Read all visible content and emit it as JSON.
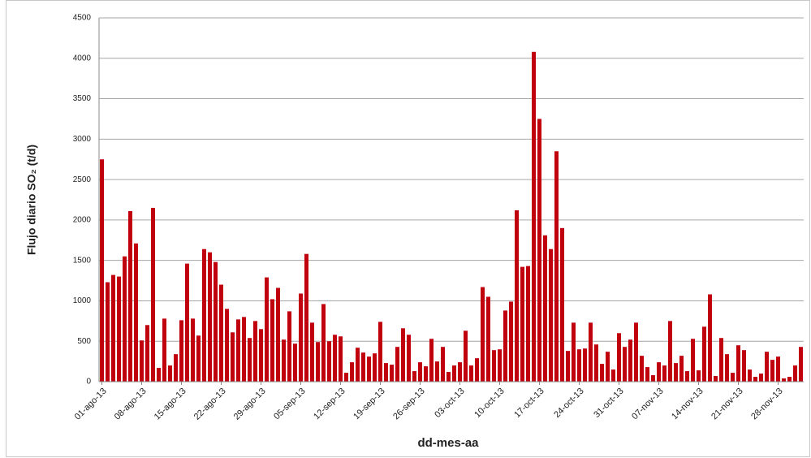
{
  "chart_data": {
    "type": "bar",
    "y_label": "Flujo diario SO₂ (t/d)",
    "x_label": "dd-mes-aa",
    "color": "#c0000c",
    "grid": true,
    "ylim": [
      0,
      4500
    ],
    "yticks": [
      0,
      500,
      1000,
      1500,
      2000,
      2500,
      3000,
      3500,
      4000,
      4500
    ],
    "categories": [
      "01-ago-13",
      null,
      null,
      null,
      null,
      null,
      null,
      "08-ago-13",
      null,
      null,
      null,
      null,
      null,
      null,
      "15-ago-13",
      null,
      null,
      null,
      null,
      null,
      null,
      "22-ago-13",
      null,
      null,
      null,
      null,
      null,
      null,
      "29-ago-13",
      null,
      null,
      null,
      null,
      null,
      null,
      "05-sep-13",
      null,
      null,
      null,
      null,
      null,
      null,
      "12-sep-13",
      null,
      null,
      null,
      null,
      null,
      null,
      "19-sep-13",
      null,
      null,
      null,
      null,
      null,
      null,
      "26-sep-13",
      null,
      null,
      null,
      null,
      null,
      null,
      "03-oct-13",
      null,
      null,
      null,
      null,
      null,
      null,
      "10-oct-13",
      null,
      null,
      null,
      null,
      null,
      null,
      "17-oct-13",
      null,
      null,
      null,
      null,
      null,
      null,
      "24-oct-13",
      null,
      null,
      null,
      null,
      null,
      null,
      "31-oct-13",
      null,
      null,
      null,
      null,
      null,
      null,
      "07-nov-13",
      null,
      null,
      null,
      null,
      null,
      null,
      "14-nov-13",
      null,
      null,
      null,
      null,
      null,
      null,
      "21-nov-13",
      null,
      null,
      null,
      null,
      null,
      null,
      "28-nov-13",
      null,
      null,
      null,
      null
    ],
    "values": [
      2750,
      1230,
      1320,
      1300,
      1550,
      2110,
      1710,
      510,
      700,
      2150,
      170,
      780,
      200,
      340,
      760,
      1460,
      780,
      570,
      1640,
      1600,
      1480,
      1200,
      900,
      610,
      770,
      800,
      540,
      750,
      650,
      1290,
      1020,
      1160,
      520,
      870,
      470,
      1090,
      1580,
      730,
      490,
      960,
      500,
      580,
      560,
      110,
      240,
      420,
      360,
      310,
      350,
      740,
      230,
      210,
      430,
      660,
      580,
      130,
      240,
      190,
      530,
      250,
      430,
      120,
      200,
      240,
      630,
      200,
      290,
      1170,
      1050,
      390,
      400,
      880,
      990,
      2120,
      1420,
      1430,
      4080,
      3250,
      1810,
      1640,
      2850,
      1900,
      380,
      730,
      400,
      410,
      730,
      460,
      220,
      370,
      150,
      600,
      430,
      520,
      730,
      320,
      180,
      80,
      240,
      200,
      750,
      230,
      320,
      130,
      530,
      140,
      680,
      1080,
      70,
      540,
      340,
      110,
      450,
      390,
      150,
      60,
      100,
      370,
      270,
      310,
      40,
      60,
      200,
      430
    ]
  }
}
